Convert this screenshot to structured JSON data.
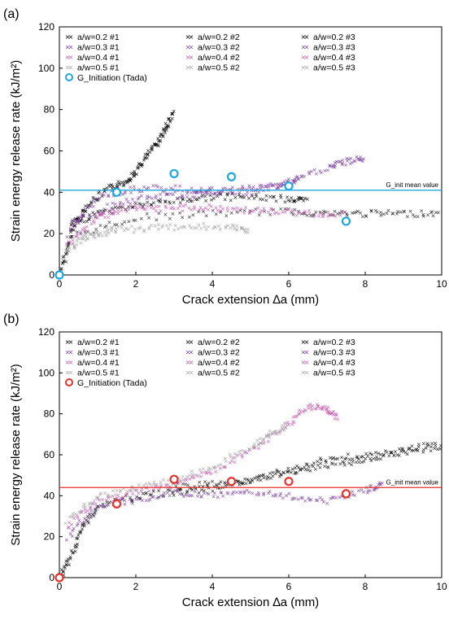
{
  "chart_data": [
    {
      "panel": "(a)",
      "type": "scatter",
      "xlabel": "Crack extension ∆a (mm)",
      "ylabel": "Strain energy release rate (kJ/m²)",
      "xlim": [
        0,
        10
      ],
      "ylim": [
        0,
        120
      ],
      "xticks": [
        "0",
        "2",
        "4",
        "6",
        "8",
        "10"
      ],
      "yticks": [
        "0",
        "20",
        "40",
        "60",
        "80",
        "100",
        "120"
      ],
      "legend": [
        "a/w=0.2 #1",
        "a/w=0.2 #2",
        "a/w=0.2 #3",
        "a/w=0.3 #1",
        "a/w=0.3 #2",
        "a/w=0.3 #3",
        "a/w=0.4 #1",
        "a/w=0.4 #2",
        "a/w=0.4 #3",
        "a/w=0.5 #1",
        "a/w=0.5 #2",
        "a/w=0.5 #3",
        "G_Initiation (Tada)"
      ],
      "mean_line": {
        "value": 41,
        "label": "G_init mean value",
        "color": "#1ea7e0"
      },
      "initiation_color": "#1ea7e0",
      "initiation_points": {
        "x": [
          0,
          1.5,
          3,
          4.5,
          6,
          7.5
        ],
        "y": [
          0,
          40,
          49,
          47.5,
          43,
          26
        ]
      },
      "series": [
        {
          "name": "a/w=0.2 #1",
          "color": "#000000",
          "x": [
            0,
            0.2,
            0.4,
            0.8,
            1.3,
            1.7,
            2.0,
            2.3,
            2.6,
            2.8,
            3.0
          ],
          "y": [
            0,
            12,
            25,
            35,
            42,
            45,
            50,
            58,
            65,
            72,
            79
          ]
        },
        {
          "name": "a/w=0.2 #2",
          "color": "#000000",
          "x": [
            0.3,
            1,
            2,
            3,
            4,
            5,
            6,
            6.5
          ],
          "y": [
            25,
            30,
            34,
            36,
            38,
            38,
            37,
            36
          ]
        },
        {
          "name": "a/w=0.2 #3",
          "color": "#222222",
          "x": [
            0.5,
            2,
            4,
            6,
            7,
            8,
            9,
            10
          ],
          "y": [
            20,
            28,
            30,
            31,
            30,
            30,
            30,
            30
          ]
        },
        {
          "name": "a/w=0.3 #1",
          "color": "#7b3f9e",
          "x": [
            0.2,
            1,
            2,
            3,
            4,
            5,
            6,
            7,
            7.5,
            8
          ],
          "y": [
            20,
            38,
            42,
            42,
            41,
            40,
            45,
            52,
            55,
            57
          ]
        },
        {
          "name": "a/w=0.3 #2",
          "color": "#7b3f9e",
          "x": [
            0.3,
            1.5,
            2.5,
            3.5,
            4,
            5,
            5.8,
            6.3
          ],
          "y": [
            25,
            35,
            38,
            39,
            40,
            42,
            44,
            46
          ]
        },
        {
          "name": "a/w=0.4 #1",
          "color": "#c65ab0",
          "x": [
            0.2,
            1,
            1.6,
            2.5,
            3.5,
            4.5,
            5.5,
            6.5,
            7.5
          ],
          "y": [
            15,
            28,
            32,
            32,
            33,
            32,
            31,
            30,
            30
          ]
        },
        {
          "name": "a/w=0.5 #1",
          "color": "#a8a8a8",
          "x": [
            0.2,
            0.6,
            1,
            1.5,
            2.5,
            3.5,
            4.5,
            5
          ],
          "y": [
            12,
            18,
            20,
            22,
            23,
            24,
            23,
            22
          ]
        }
      ]
    },
    {
      "panel": "(b)",
      "type": "scatter",
      "xlabel": "Crack extension ∆a (mm)",
      "ylabel": "Strain energy release rate (kJ/m²)",
      "xlim": [
        0,
        10
      ],
      "ylim": [
        0,
        120
      ],
      "xticks": [
        "0",
        "2",
        "4",
        "6",
        "8",
        "10"
      ],
      "yticks": [
        "0",
        "20",
        "40",
        "60",
        "80",
        "100",
        "120"
      ],
      "legend": [
        "a/w=0.2 #1",
        "a/w=0.2 #2",
        "a/w=0.2 #3",
        "a/w=0.3 #1",
        "a/w=0.3 #2",
        "a/w=0.3 #3",
        "a/w=0.4 #1",
        "a/w=0.4 #2",
        "a/w=0.4 #3",
        "a/w=0.5 #1",
        "a/w=0.5 #2",
        "a/w=0.5 #3",
        "G_Initiation (Tada)"
      ],
      "mean_line": {
        "value": 44,
        "label": "G_init mean value",
        "color": "#e8302a"
      },
      "initiation_color": "#e8302a",
      "initiation_points": {
        "x": [
          0,
          1.5,
          3,
          4.5,
          6,
          7.5
        ],
        "y": [
          0,
          36,
          48,
          47,
          47,
          41
        ]
      },
      "series": [
        {
          "name": "a/w=0.2 #1",
          "color": "#000000",
          "x": [
            0,
            0.3,
            0.6,
            1,
            2,
            3,
            4,
            5,
            6,
            7,
            8,
            9,
            10
          ],
          "y": [
            0,
            10,
            25,
            35,
            40,
            42,
            44,
            48,
            53,
            58,
            60,
            62,
            64
          ]
        },
        {
          "name": "a/w=0.2 #2",
          "color": "#111111",
          "x": [
            3,
            4,
            5,
            6,
            7,
            8,
            9,
            10
          ],
          "y": [
            45,
            46,
            48,
            52,
            55,
            58,
            62,
            66
          ]
        },
        {
          "name": "a/w=0.3 #1",
          "color": "#7b3f9e",
          "x": [
            0.2,
            1,
            2,
            3,
            4,
            5,
            6,
            7,
            8,
            8.5
          ],
          "y": [
            20,
            35,
            38,
            42,
            40,
            42,
            40,
            38,
            43,
            47
          ]
        },
        {
          "name": "a/w=0.4 #1",
          "color": "#c65ab0",
          "x": [
            0.2,
            1,
            2,
            3,
            4,
            5,
            6,
            6.5,
            7,
            7.3
          ],
          "y": [
            25,
            38,
            42,
            46,
            52,
            62,
            75,
            84,
            83,
            78
          ]
        },
        {
          "name": "a/w=0.5 #1",
          "color": "#a8a8a8",
          "x": [
            0.2,
            1,
            2,
            3,
            4,
            5,
            5.5,
            6
          ],
          "y": [
            28,
            40,
            44,
            48,
            54,
            64,
            70,
            75
          ]
        }
      ]
    }
  ]
}
